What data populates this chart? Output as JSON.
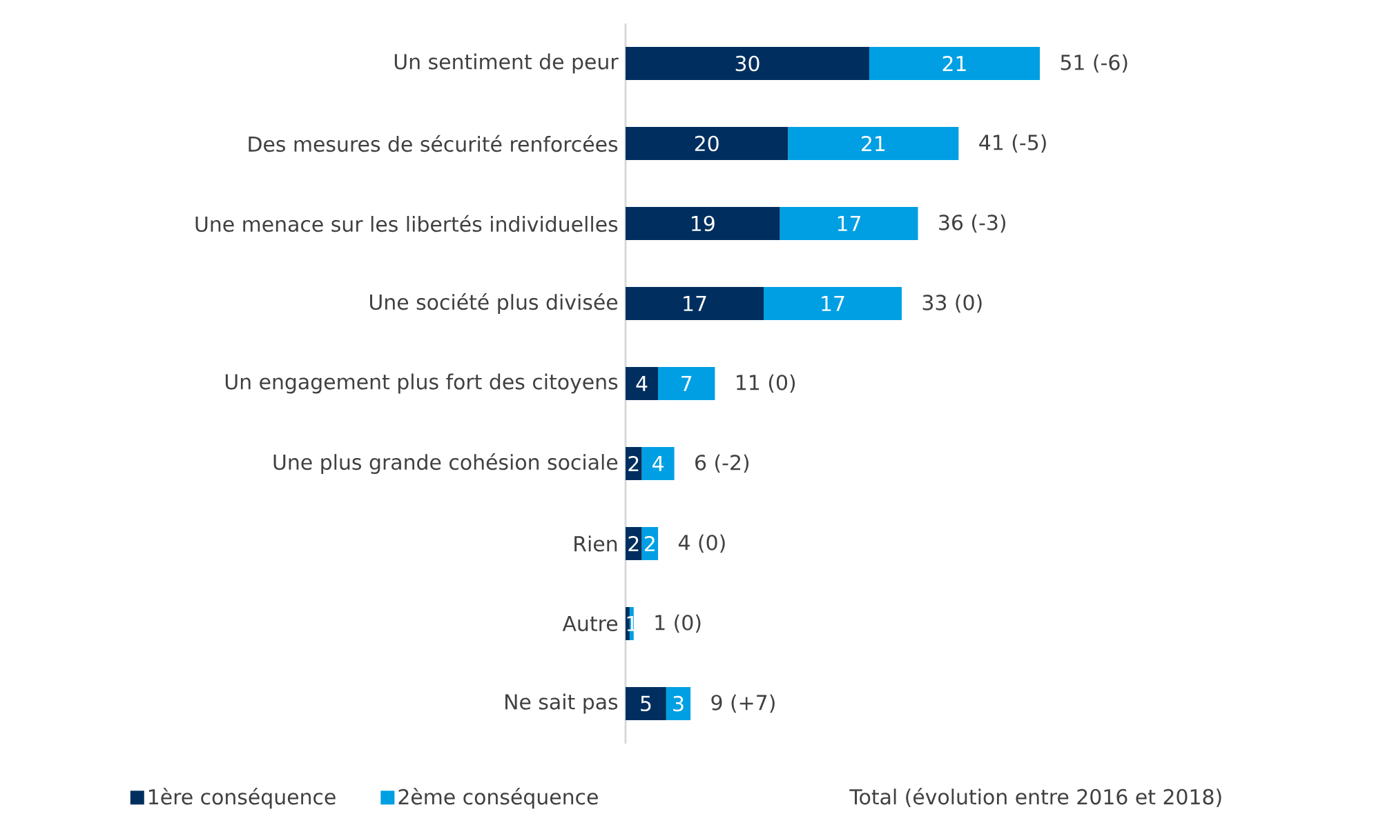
{
  "chart_data": {
    "type": "bar",
    "orientation": "horizontal",
    "stacked": true,
    "legend": "bottom",
    "categories": [
      "Un sentiment de peur",
      "Des mesures de sécurité renforcées",
      "Une menace sur les libertés individuelles",
      "Une société plus divisée",
      "Un engagement plus fort des citoyens",
      "Une plus grande cohésion sociale",
      "Rien",
      "Autre",
      "Ne sait pas"
    ],
    "series": [
      {
        "name": "1ère conséquence",
        "color": "#002f5f",
        "values": [
          30,
          20,
          19,
          17,
          4,
          2,
          2,
          0.5,
          5
        ],
        "value_labels": [
          "30",
          "20",
          "19",
          "17",
          "4",
          "2",
          "2",
          null,
          "5"
        ]
      },
      {
        "name": "2ème conséquence",
        "color": "#009fe3",
        "values": [
          21,
          21,
          17,
          17,
          7,
          4,
          2,
          0.5,
          3
        ],
        "value_labels": [
          "21",
          "21",
          "17",
          "17",
          "7",
          "4",
          "2",
          "1",
          "3"
        ]
      }
    ],
    "totals": [
      "51 (-6)",
      "41 (-5)",
      "36 (-3)",
      "33 (0)",
      "11 (0)",
      "6 (-2)",
      "4 (0)",
      "1 (0)",
      "9 (+7)"
    ],
    "annotations": [
      "Total (évolution entre 2016 et 2018)"
    ]
  }
}
